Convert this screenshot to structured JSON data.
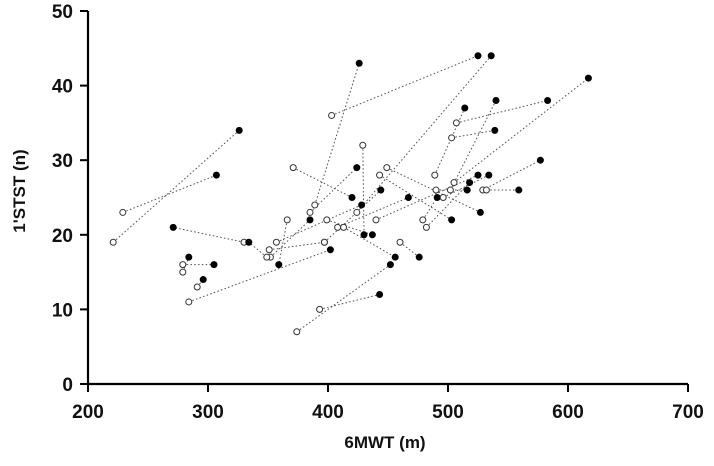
{
  "chart_data": {
    "type": "scatter",
    "xlabel": "6MWT (m)",
    "ylabel": "1'STST (n)",
    "xlim": [
      200,
      700
    ],
    "ylim": [
      0,
      50
    ],
    "xticks": [
      200,
      300,
      400,
      500,
      600,
      700
    ],
    "yticks": [
      0,
      10,
      20,
      30,
      40,
      50
    ],
    "grid": false,
    "legend": "none",
    "series": [
      {
        "name": "open",
        "marker": "open-circle"
      },
      {
        "name": "filled",
        "marker": "filled-circle"
      }
    ],
    "pairs": [
      {
        "open": [
          221,
          19
        ],
        "filled": [
          326,
          34
        ]
      },
      {
        "open": [
          229,
          23
        ],
        "filled": [
          307,
          28
        ]
      },
      {
        "open": [
          279,
          16
        ],
        "filled": [
          305,
          16
        ]
      },
      {
        "open": [
          279,
          15
        ],
        "filled": [
          284,
          17
        ]
      },
      {
        "open": [
          291,
          13
        ],
        "filled": [
          296,
          14
        ]
      },
      {
        "open": [
          284,
          11
        ],
        "filled": [
          402,
          18
        ]
      },
      {
        "open": [
          330,
          19
        ],
        "filled": [
          271,
          21
        ]
      },
      {
        "open": [
          352,
          17
        ],
        "filled": [
          385,
          22
        ]
      },
      {
        "open": [
          349,
          17
        ],
        "filled": [
          334,
          19
        ]
      },
      {
        "open": [
          351,
          18
        ],
        "filled": [
          397,
          19
        ]
      },
      {
        "open": [
          357,
          19
        ],
        "filled": [
          428,
          24
        ]
      },
      {
        "open": [
          366,
          22
        ],
        "filled": [
          359,
          16
        ]
      },
      {
        "open": [
          371,
          29
        ],
        "filled": [
          420,
          25
        ]
      },
      {
        "open": [
          385,
          23
        ],
        "filled": [
          424,
          29
        ]
      },
      {
        "open": [
          389,
          24
        ],
        "filled": [
          426,
          43
        ]
      },
      {
        "open": [
          397,
          19
        ],
        "filled": [
          444,
          26
        ]
      },
      {
        "open": [
          399,
          22
        ],
        "filled": [
          437,
          20
        ]
      },
      {
        "open": [
          403,
          36
        ],
        "filled": [
          525,
          44
        ]
      },
      {
        "open": [
          408,
          21
        ],
        "filled": [
          467,
          25
        ]
      },
      {
        "open": [
          413,
          21
        ],
        "filled": [
          456,
          17
        ]
      },
      {
        "open": [
          424,
          23
        ],
        "filled": [
          536,
          44
        ]
      },
      {
        "open": [
          429,
          32
        ],
        "filled": [
          430,
          20
        ]
      },
      {
        "open": [
          440,
          22
        ],
        "filled": [
          525,
          28
        ]
      },
      {
        "open": [
          443,
          28
        ],
        "filled": [
          503,
          22
        ]
      },
      {
        "open": [
          449,
          29
        ],
        "filled": [
          527,
          23
        ]
      },
      {
        "open": [
          460,
          19
        ],
        "filled": [
          476,
          17
        ]
      },
      {
        "open": [
          393,
          10
        ],
        "filled": [
          443,
          12
        ]
      },
      {
        "open": [
          374,
          7
        ],
        "filled": [
          452,
          16
        ]
      },
      {
        "open": [
          479,
          22
        ],
        "filled": [
          491,
          25
        ]
      },
      {
        "open": [
          482,
          21
        ],
        "filled": [
          518,
          27
        ]
      },
      {
        "open": [
          489,
          28
        ],
        "filled": [
          514,
          37
        ]
      },
      {
        "open": [
          490,
          26
        ],
        "filled": [
          516,
          26
        ]
      },
      {
        "open": [
          496,
          25
        ],
        "filled": [
          534,
          28
        ]
      },
      {
        "open": [
          502,
          26
        ],
        "filled": [
          540,
          38
        ]
      },
      {
        "open": [
          505,
          27
        ],
        "filled": [
          617,
          41
        ]
      },
      {
        "open": [
          503,
          33
        ],
        "filled": [
          539,
          34
        ]
      },
      {
        "open": [
          507,
          35
        ],
        "filled": [
          583,
          38
        ]
      },
      {
        "open": [
          529,
          26
        ],
        "filled": [
          577,
          30
        ]
      },
      {
        "open": [
          532,
          26
        ],
        "filled": [
          559,
          26
        ]
      }
    ]
  }
}
